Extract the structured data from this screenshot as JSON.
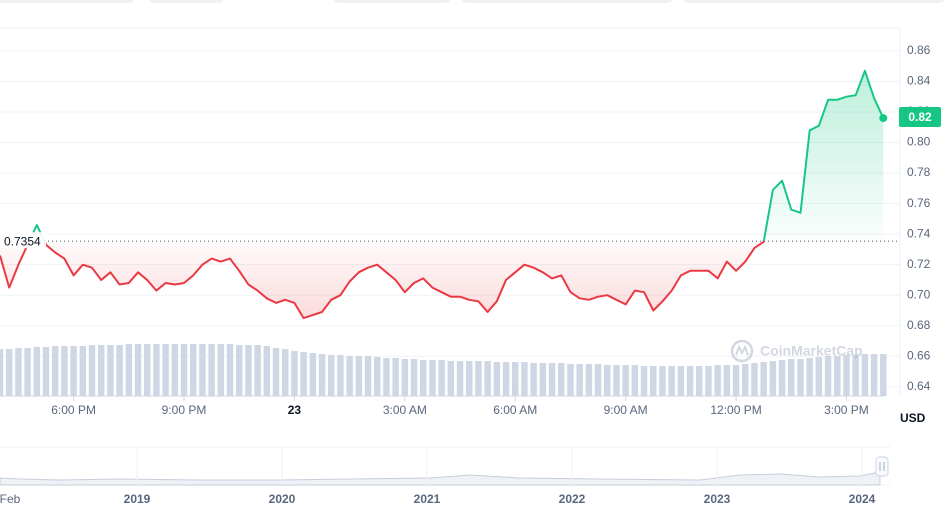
{
  "chart_data": {
    "type": "line",
    "x": [
      0,
      0.25,
      0.5,
      0.75,
      1,
      1.25,
      1.5,
      1.75,
      2,
      2.25,
      2.5,
      2.75,
      3,
      3.25,
      3.5,
      3.75,
      4,
      4.25,
      4.5,
      4.75,
      5,
      5.25,
      5.5,
      5.75,
      6,
      6.25,
      6.5,
      6.75,
      7,
      7.25,
      7.5,
      7.75,
      8,
      8.25,
      8.5,
      8.75,
      9,
      9.25,
      9.5,
      9.75,
      10,
      10.25,
      10.5,
      10.75,
      11,
      11.25,
      11.5,
      11.75,
      12,
      12.25,
      12.5,
      12.75,
      13,
      13.25,
      13.5,
      13.75,
      14,
      14.25,
      14.5,
      14.75,
      15,
      15.25,
      15.5,
      15.75,
      16,
      16.25,
      16.5,
      16.75,
      17,
      17.25,
      17.5,
      17.75,
      18,
      18.25,
      18.5,
      18.75,
      19,
      19.25,
      19.5,
      19.75,
      20,
      20.25,
      20.5,
      20.75,
      21,
      21.25,
      21.5,
      21.75,
      22,
      22.25,
      22.5,
      22.75,
      23,
      23.25,
      23.5,
      23.75,
      24
    ],
    "values": [
      0.726,
      0.705,
      0.72,
      0.733,
      0.746,
      0.733,
      0.728,
      0.724,
      0.713,
      0.72,
      0.718,
      0.71,
      0.715,
      0.707,
      0.708,
      0.715,
      0.71,
      0.703,
      0.708,
      0.707,
      0.708,
      0.713,
      0.72,
      0.724,
      0.722,
      0.724,
      0.716,
      0.707,
      0.703,
      0.698,
      0.695,
      0.697,
      0.695,
      0.685,
      0.687,
      0.689,
      0.697,
      0.7,
      0.709,
      0.715,
      0.718,
      0.72,
      0.715,
      0.71,
      0.702,
      0.708,
      0.711,
      0.705,
      0.702,
      0.699,
      0.699,
      0.697,
      0.696,
      0.689,
      0.696,
      0.71,
      0.715,
      0.72,
      0.718,
      0.715,
      0.711,
      0.713,
      0.702,
      0.698,
      0.697,
      0.699,
      0.7,
      0.697,
      0.694,
      0.703,
      0.702,
      0.69,
      0.696,
      0.703,
      0.713,
      0.716,
      0.716,
      0.716,
      0.711,
      0.722,
      0.716,
      0.722,
      0.731,
      0.735,
      0.769,
      0.775,
      0.756,
      0.754,
      0.808,
      0.811,
      0.828,
      0.828,
      0.83,
      0.831,
      0.847,
      0.829,
      0.816
    ],
    "up_color": "#16c784",
    "down_color": "#ea3943",
    "volume": {
      "ylim": [
        0,
        100
      ],
      "color": "#cfd6e4",
      "values": [
        47,
        47,
        48,
        48,
        49,
        49,
        50,
        50,
        50,
        50,
        51,
        51,
        51,
        51,
        52,
        52,
        52,
        52,
        52,
        52,
        52,
        52,
        52,
        52,
        52,
        52,
        51,
        51,
        51,
        50,
        48,
        47,
        45,
        44,
        43,
        42,
        41,
        41,
        40,
        40,
        40,
        39,
        38,
        38,
        37,
        37,
        36,
        36,
        36,
        35,
        35,
        35,
        35,
        35,
        34,
        34,
        34,
        34,
        33,
        33,
        33,
        33,
        32,
        32,
        32,
        32,
        31,
        31,
        31,
        31,
        30,
        30,
        30,
        30,
        30,
        30,
        30,
        30,
        31,
        31,
        31,
        32,
        33,
        34,
        35,
        36,
        37,
        37,
        38,
        39,
        40,
        40,
        41,
        41,
        42,
        42,
        42
      ]
    },
    "xlim": [
      0,
      24.4
    ],
    "ylim": [
      0.634,
      0.875
    ],
    "xticks": [
      {
        "value": 2,
        "label": "6:00 PM"
      },
      {
        "value": 5,
        "label": "9:00 PM"
      },
      {
        "value": 8,
        "label": "23"
      },
      {
        "value": 11,
        "label": "3:00 AM"
      },
      {
        "value": 14,
        "label": "6:00 AM"
      },
      {
        "value": 17,
        "label": "9:00 AM"
      },
      {
        "value": 20,
        "label": "12:00 PM"
      },
      {
        "value": 23,
        "label": "3:00 PM"
      }
    ],
    "yticks": [
      0.86,
      0.84,
      {
        "value": 0.82,
        "label": "0.82"
      },
      {
        "value": 0.8,
        "label": "0.80"
      },
      0.78,
      0.76,
      0.74,
      0.72,
      {
        "value": 0.7,
        "label": "0.70"
      },
      0.68,
      0.66,
      0.64
    ],
    "reference": 0.7354,
    "current_price": 0.82,
    "currency": "USD",
    "watermark": "CoinMarketCap",
    "navigator_labels": [
      "Feb",
      "2019",
      "2020",
      "2021",
      "2022",
      "2023",
      "2024"
    ],
    "grid": true
  }
}
